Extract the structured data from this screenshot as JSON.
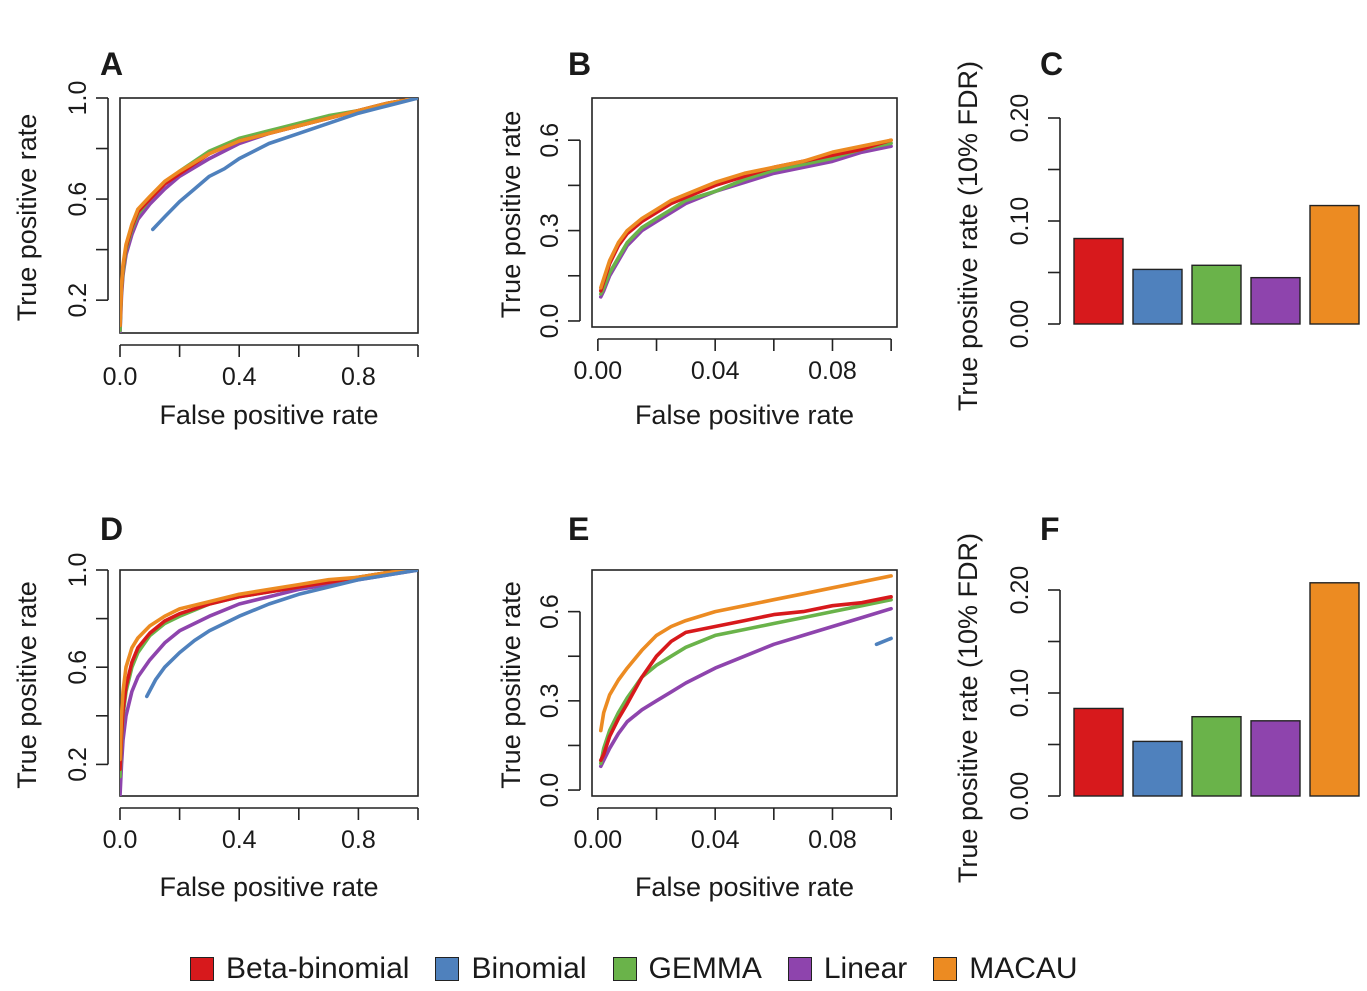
{
  "colors": {
    "Beta-binomial": "#d7191c",
    "Binomial": "#4f81bd",
    "GEMMA": "#6ab34a",
    "Linear": "#8e44ad",
    "MACAU": "#ec8b22"
  },
  "legend": {
    "items": [
      {
        "label": "Beta-binomial",
        "color": "#d7191c"
      },
      {
        "label": "Binomial",
        "color": "#4f81bd"
      },
      {
        "label": "GEMMA",
        "color": "#6ab34a"
      },
      {
        "label": "Linear",
        "color": "#8e44ad"
      },
      {
        "label": "MACAU",
        "color": "#ec8b22"
      }
    ]
  },
  "chart_data": [
    {
      "panel": "A",
      "type": "line",
      "xlabel": "False positive rate",
      "ylabel": "True positive rate",
      "xlim": [
        0,
        1
      ],
      "ylim": [
        0.07,
        1.0
      ],
      "xticks": [
        {
          "v": 0,
          "label": "0.0"
        },
        {
          "v": 0.2,
          "label": ""
        },
        {
          "v": 0.4,
          "label": "0.4"
        },
        {
          "v": 0.6,
          "label": ""
        },
        {
          "v": 0.8,
          "label": "0.8"
        },
        {
          "v": 1.0,
          "label": ""
        }
      ],
      "yticks": [
        {
          "v": 0.2,
          "label": "0.2"
        },
        {
          "v": 0.4,
          "label": ""
        },
        {
          "v": 0.6,
          "label": "0.6"
        },
        {
          "v": 0.8,
          "label": ""
        },
        {
          "v": 1.0,
          "label": "1.0"
        }
      ],
      "series": [
        {
          "name": "Linear",
          "x": [
            0.0,
            0.005,
            0.01,
            0.02,
            0.04,
            0.06,
            0.1,
            0.15,
            0.2,
            0.3,
            0.4,
            0.5,
            0.6,
            0.7,
            0.8,
            0.9,
            1.0
          ],
          "y": [
            0.07,
            0.22,
            0.3,
            0.38,
            0.46,
            0.52,
            0.58,
            0.64,
            0.69,
            0.76,
            0.82,
            0.86,
            0.89,
            0.92,
            0.95,
            0.98,
            1.0
          ]
        },
        {
          "name": "GEMMA",
          "x": [
            0.0,
            0.005,
            0.01,
            0.02,
            0.04,
            0.06,
            0.1,
            0.15,
            0.2,
            0.3,
            0.4,
            0.5,
            0.6,
            0.7,
            0.8,
            0.9,
            1.0
          ],
          "y": [
            0.08,
            0.24,
            0.31,
            0.4,
            0.48,
            0.54,
            0.6,
            0.66,
            0.71,
            0.79,
            0.84,
            0.87,
            0.9,
            0.93,
            0.95,
            0.98,
            1.0
          ]
        },
        {
          "name": "Beta-binomial",
          "x": [
            0.0,
            0.005,
            0.01,
            0.02,
            0.04,
            0.06,
            0.1,
            0.15,
            0.2,
            0.3,
            0.4,
            0.5,
            0.6,
            0.7,
            0.8,
            0.9,
            1.0
          ],
          "y": [
            0.1,
            0.25,
            0.33,
            0.41,
            0.49,
            0.55,
            0.6,
            0.66,
            0.7,
            0.78,
            0.83,
            0.86,
            0.89,
            0.92,
            0.95,
            0.98,
            1.0
          ]
        },
        {
          "name": "MACAU",
          "x": [
            0.0,
            0.005,
            0.01,
            0.02,
            0.04,
            0.06,
            0.1,
            0.15,
            0.2,
            0.3,
            0.4,
            0.5,
            0.6,
            0.7,
            0.8,
            0.9,
            1.0
          ],
          "y": [
            0.1,
            0.26,
            0.34,
            0.42,
            0.5,
            0.56,
            0.61,
            0.67,
            0.71,
            0.78,
            0.83,
            0.86,
            0.89,
            0.92,
            0.95,
            0.98,
            1.0
          ]
        },
        {
          "name": "Binomial",
          "x": [
            0.11,
            0.15,
            0.2,
            0.25,
            0.3,
            0.35,
            0.4,
            0.5,
            0.6,
            0.7,
            0.8,
            0.9,
            1.0
          ],
          "y": [
            0.48,
            0.53,
            0.59,
            0.64,
            0.69,
            0.72,
            0.76,
            0.82,
            0.86,
            0.9,
            0.94,
            0.97,
            1.0
          ]
        }
      ]
    },
    {
      "panel": "B",
      "type": "line",
      "xlabel": "False positive rate",
      "ylabel": "True positive rate",
      "xlim": [
        -0.002,
        0.102
      ],
      "ylim": [
        -0.02,
        0.74
      ],
      "xticks": [
        {
          "v": 0,
          "label": "0.00"
        },
        {
          "v": 0.02,
          "label": ""
        },
        {
          "v": 0.04,
          "label": "0.04"
        },
        {
          "v": 0.06,
          "label": ""
        },
        {
          "v": 0.08,
          "label": "0.08"
        },
        {
          "v": 0.1,
          "label": ""
        }
      ],
      "yticks": [
        {
          "v": 0.0,
          "label": "0.0"
        },
        {
          "v": 0.15,
          "label": ""
        },
        {
          "v": 0.3,
          "label": "0.3"
        },
        {
          "v": 0.45,
          "label": ""
        },
        {
          "v": 0.6,
          "label": "0.6"
        }
      ],
      "series": [
        {
          "name": "Linear",
          "x": [
            0.001,
            0.002,
            0.004,
            0.007,
            0.01,
            0.015,
            0.02,
            0.025,
            0.03,
            0.04,
            0.05,
            0.06,
            0.07,
            0.08,
            0.09,
            0.1
          ],
          "y": [
            0.08,
            0.1,
            0.15,
            0.2,
            0.25,
            0.3,
            0.33,
            0.36,
            0.39,
            0.43,
            0.46,
            0.49,
            0.51,
            0.53,
            0.56,
            0.58
          ]
        },
        {
          "name": "GEMMA",
          "x": [
            0.001,
            0.002,
            0.004,
            0.007,
            0.01,
            0.015,
            0.02,
            0.025,
            0.03,
            0.04,
            0.05,
            0.06,
            0.07,
            0.08,
            0.09,
            0.1
          ],
          "y": [
            0.09,
            0.11,
            0.16,
            0.21,
            0.26,
            0.31,
            0.34,
            0.37,
            0.4,
            0.43,
            0.47,
            0.5,
            0.52,
            0.54,
            0.57,
            0.59
          ]
        },
        {
          "name": "Beta-binomial",
          "x": [
            0.001,
            0.002,
            0.004,
            0.007,
            0.01,
            0.015,
            0.02,
            0.025,
            0.03,
            0.04,
            0.05,
            0.06,
            0.07,
            0.08,
            0.09,
            0.1
          ],
          "y": [
            0.1,
            0.13,
            0.19,
            0.25,
            0.29,
            0.33,
            0.36,
            0.39,
            0.41,
            0.45,
            0.48,
            0.51,
            0.53,
            0.55,
            0.57,
            0.6
          ]
        },
        {
          "name": "MACAU",
          "x": [
            0.001,
            0.002,
            0.004,
            0.007,
            0.01,
            0.015,
            0.02,
            0.025,
            0.03,
            0.04,
            0.05,
            0.06,
            0.07,
            0.08,
            0.09,
            0.1
          ],
          "y": [
            0.11,
            0.14,
            0.2,
            0.26,
            0.3,
            0.34,
            0.37,
            0.4,
            0.42,
            0.46,
            0.49,
            0.51,
            0.53,
            0.56,
            0.58,
            0.6
          ]
        }
      ]
    },
    {
      "panel": "C",
      "type": "bar",
      "ylabel": "True positive rate (10% FDR)",
      "ylim": [
        0,
        0.2
      ],
      "yticks": [
        {
          "v": 0.0,
          "label": "0.00"
        },
        {
          "v": 0.05,
          "label": ""
        },
        {
          "v": 0.1,
          "label": "0.10"
        },
        {
          "v": 0.15,
          "label": ""
        },
        {
          "v": 0.2,
          "label": "0.20"
        }
      ],
      "categories": [
        "Beta-binomial",
        "Binomial",
        "GEMMA",
        "Linear",
        "MACAU"
      ],
      "values": [
        0.083,
        0.053,
        0.057,
        0.045,
        0.115
      ]
    },
    {
      "panel": "D",
      "type": "line",
      "xlabel": "False positive rate",
      "ylabel": "True positive rate",
      "xlim": [
        0,
        1
      ],
      "ylim": [
        0.07,
        1.0
      ],
      "xticks": [
        {
          "v": 0,
          "label": "0.0"
        },
        {
          "v": 0.2,
          "label": ""
        },
        {
          "v": 0.4,
          "label": "0.4"
        },
        {
          "v": 0.6,
          "label": ""
        },
        {
          "v": 0.8,
          "label": "0.8"
        },
        {
          "v": 1.0,
          "label": ""
        }
      ],
      "yticks": [
        {
          "v": 0.2,
          "label": "0.2"
        },
        {
          "v": 0.4,
          "label": ""
        },
        {
          "v": 0.6,
          "label": "0.6"
        },
        {
          "v": 0.8,
          "label": ""
        },
        {
          "v": 1.0,
          "label": "1.0"
        }
      ],
      "series": [
        {
          "name": "Linear",
          "x": [
            0.0,
            0.005,
            0.01,
            0.02,
            0.04,
            0.06,
            0.1,
            0.15,
            0.2,
            0.3,
            0.4,
            0.5,
            0.6,
            0.7,
            0.8,
            0.9,
            1.0
          ],
          "y": [
            0.07,
            0.2,
            0.3,
            0.4,
            0.5,
            0.56,
            0.63,
            0.7,
            0.75,
            0.81,
            0.86,
            0.89,
            0.92,
            0.94,
            0.96,
            0.98,
            1.0
          ]
        },
        {
          "name": "GEMMA",
          "x": [
            0.0,
            0.005,
            0.01,
            0.02,
            0.04,
            0.06,
            0.1,
            0.15,
            0.2,
            0.3,
            0.4,
            0.5,
            0.6,
            0.7,
            0.8,
            0.9,
            1.0
          ],
          "y": [
            0.15,
            0.3,
            0.4,
            0.5,
            0.6,
            0.66,
            0.73,
            0.78,
            0.81,
            0.86,
            0.89,
            0.91,
            0.93,
            0.95,
            0.97,
            0.99,
            1.0
          ]
        },
        {
          "name": "Beta-binomial",
          "x": [
            0.0,
            0.005,
            0.01,
            0.02,
            0.04,
            0.06,
            0.1,
            0.15,
            0.2,
            0.3,
            0.4,
            0.5,
            0.6,
            0.7,
            0.8,
            0.9,
            1.0
          ],
          "y": [
            0.18,
            0.32,
            0.42,
            0.52,
            0.62,
            0.68,
            0.74,
            0.79,
            0.82,
            0.86,
            0.89,
            0.91,
            0.93,
            0.95,
            0.97,
            0.99,
            1.0
          ]
        },
        {
          "name": "MACAU",
          "x": [
            0.0,
            0.005,
            0.01,
            0.02,
            0.04,
            0.06,
            0.1,
            0.15,
            0.2,
            0.3,
            0.4,
            0.5,
            0.6,
            0.7,
            0.8,
            0.9,
            1.0
          ],
          "y": [
            0.22,
            0.4,
            0.5,
            0.6,
            0.68,
            0.72,
            0.77,
            0.81,
            0.84,
            0.87,
            0.9,
            0.92,
            0.94,
            0.96,
            0.97,
            0.99,
            1.0
          ]
        },
        {
          "name": "Binomial",
          "x": [
            0.09,
            0.12,
            0.15,
            0.2,
            0.25,
            0.3,
            0.4,
            0.5,
            0.6,
            0.7,
            0.8,
            0.9,
            1.0
          ],
          "y": [
            0.48,
            0.55,
            0.6,
            0.66,
            0.71,
            0.75,
            0.81,
            0.86,
            0.9,
            0.93,
            0.96,
            0.98,
            1.0
          ]
        }
      ]
    },
    {
      "panel": "E",
      "type": "line",
      "xlabel": "False positive rate",
      "ylabel": "True positive rate",
      "xlim": [
        -0.002,
        0.102
      ],
      "ylim": [
        -0.02,
        0.74
      ],
      "xticks": [
        {
          "v": 0,
          "label": "0.00"
        },
        {
          "v": 0.02,
          "label": ""
        },
        {
          "v": 0.04,
          "label": "0.04"
        },
        {
          "v": 0.06,
          "label": ""
        },
        {
          "v": 0.08,
          "label": "0.08"
        },
        {
          "v": 0.1,
          "label": ""
        }
      ],
      "yticks": [
        {
          "v": 0.0,
          "label": "0.0"
        },
        {
          "v": 0.15,
          "label": ""
        },
        {
          "v": 0.3,
          "label": "0.3"
        },
        {
          "v": 0.45,
          "label": ""
        },
        {
          "v": 0.6,
          "label": "0.6"
        }
      ],
      "series": [
        {
          "name": "Linear",
          "x": [
            0.001,
            0.002,
            0.004,
            0.007,
            0.01,
            0.015,
            0.02,
            0.025,
            0.03,
            0.04,
            0.05,
            0.06,
            0.07,
            0.08,
            0.09,
            0.1
          ],
          "y": [
            0.08,
            0.1,
            0.14,
            0.19,
            0.23,
            0.27,
            0.3,
            0.33,
            0.36,
            0.41,
            0.45,
            0.49,
            0.52,
            0.55,
            0.58,
            0.61
          ]
        },
        {
          "name": "GEMMA",
          "x": [
            0.001,
            0.002,
            0.004,
            0.007,
            0.01,
            0.015,
            0.02,
            0.025,
            0.03,
            0.04,
            0.05,
            0.06,
            0.07,
            0.08,
            0.09,
            0.1
          ],
          "y": [
            0.09,
            0.14,
            0.2,
            0.26,
            0.31,
            0.38,
            0.42,
            0.45,
            0.48,
            0.52,
            0.54,
            0.56,
            0.58,
            0.6,
            0.62,
            0.64
          ]
        },
        {
          "name": "Beta-binomial",
          "x": [
            0.001,
            0.002,
            0.004,
            0.007,
            0.01,
            0.015,
            0.02,
            0.025,
            0.03,
            0.04,
            0.05,
            0.06,
            0.07,
            0.08,
            0.09,
            0.1
          ],
          "y": [
            0.1,
            0.12,
            0.18,
            0.24,
            0.29,
            0.38,
            0.45,
            0.5,
            0.53,
            0.55,
            0.57,
            0.59,
            0.6,
            0.62,
            0.63,
            0.65
          ]
        },
        {
          "name": "MACAU",
          "x": [
            0.001,
            0.002,
            0.004,
            0.007,
            0.01,
            0.015,
            0.02,
            0.025,
            0.03,
            0.04,
            0.05,
            0.06,
            0.07,
            0.08,
            0.09,
            0.1
          ],
          "y": [
            0.2,
            0.26,
            0.32,
            0.37,
            0.41,
            0.47,
            0.52,
            0.55,
            0.57,
            0.6,
            0.62,
            0.64,
            0.66,
            0.68,
            0.7,
            0.72
          ]
        },
        {
          "name": "Binomial",
          "x": [
            0.095,
            0.1
          ],
          "y": [
            0.49,
            0.51
          ]
        }
      ]
    },
    {
      "panel": "F",
      "type": "bar",
      "ylabel": "True positive rate (10% FDR)",
      "ylim": [
        0,
        0.2
      ],
      "yticks": [
        {
          "v": 0.0,
          "label": "0.00"
        },
        {
          "v": 0.05,
          "label": ""
        },
        {
          "v": 0.1,
          "label": "0.10"
        },
        {
          "v": 0.15,
          "label": ""
        },
        {
          "v": 0.2,
          "label": "0.20"
        }
      ],
      "categories": [
        "Beta-binomial",
        "Binomial",
        "GEMMA",
        "Linear",
        "MACAU"
      ],
      "values": [
        0.085,
        0.053,
        0.077,
        0.073,
        0.207
      ]
    }
  ]
}
